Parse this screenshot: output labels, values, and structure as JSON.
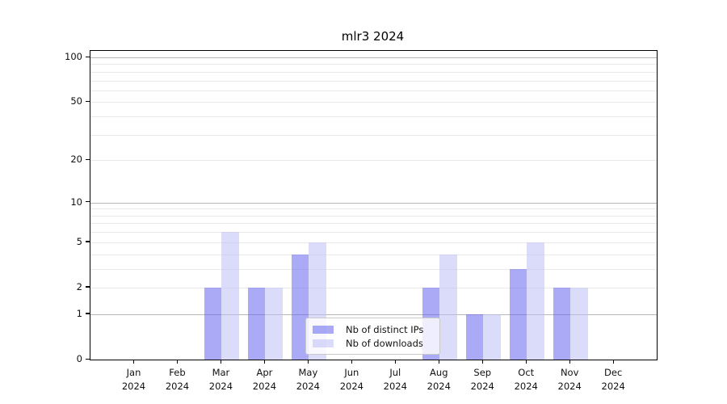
{
  "title": "mlr3 2024",
  "chart_data": {
    "type": "bar",
    "title": "mlr3 2024",
    "categories": [
      "Jan",
      "Feb",
      "Mar",
      "Apr",
      "May",
      "Jun",
      "Jul",
      "Aug",
      "Sep",
      "Oct",
      "Nov",
      "Dec"
    ],
    "year": "2024",
    "series": [
      {
        "name": "Nb of distinct IPs",
        "values": [
          0,
          0,
          2,
          2,
          4,
          0,
          0,
          2,
          1,
          3,
          2,
          0
        ],
        "color": "#aaaaf7",
        "fill": "rgba(100,100,240,0.55)"
      },
      {
        "name": "Nb of downloads",
        "values": [
          0,
          0,
          6,
          2,
          5,
          0,
          0,
          4,
          1,
          5,
          2,
          0
        ],
        "color": "#dbdbfa",
        "fill": "rgba(190,190,246,0.55)"
      }
    ],
    "xlabel": "",
    "ylabel": "",
    "yscale": "log1p",
    "ylim": [
      0,
      100
    ],
    "ytick_values": [
      0,
      1,
      2,
      5,
      10,
      20,
      50,
      100
    ],
    "grid": {
      "major_values": [
        1,
        10,
        100
      ],
      "minor_values": [
        2,
        3,
        4,
        5,
        6,
        7,
        8,
        9,
        20,
        30,
        40,
        50,
        60,
        70,
        80,
        90
      ],
      "major_color": "#b7b7b7",
      "minor_color": "#eaeaea"
    },
    "legend": {
      "position": "inside-bottom-center",
      "background": "rgba(255,255,255,0.8)",
      "border_color": "#c9c9c9"
    },
    "frame_color": "#000000"
  }
}
